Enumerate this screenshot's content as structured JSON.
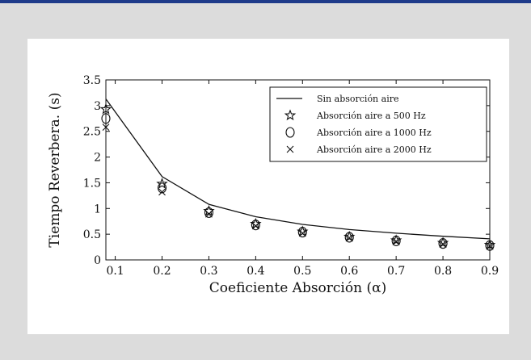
{
  "colors": {
    "accent_rule": "#1f3b8a",
    "background": "#dcdcdc",
    "panel": "#ffffff",
    "ink": "#111111"
  },
  "chart_data": {
    "type": "line",
    "title": "",
    "xlabel": "Coeficiente Absorción (α)",
    "ylabel": "Tiempo Reverbera. (s)",
    "xlim": [
      0.08,
      0.9
    ],
    "ylim": [
      0,
      3.5
    ],
    "xticks": [
      "0.1",
      "0.2",
      "0.3",
      "0.4",
      "0.5",
      "0.6",
      "0.7",
      "0.8",
      "0.9"
    ],
    "yticks": [
      "0",
      "0.5",
      "1",
      "1.5",
      "2",
      "2.5",
      "3",
      "3.5"
    ],
    "grid": false,
    "legend_position": "top-right",
    "x": [
      0.08,
      0.2,
      0.3,
      0.4,
      0.5,
      0.6,
      0.7,
      0.8,
      0.9
    ],
    "series": [
      {
        "name": "Sin absorción aire",
        "marker": "line",
        "values": [
          3.13,
          1.62,
          1.08,
          0.84,
          0.69,
          0.59,
          0.52,
          0.46,
          0.41
        ]
      },
      {
        "name": "Absorción aire a 500 Hz",
        "marker": "star",
        "values": [
          2.93,
          1.48,
          0.95,
          0.7,
          0.55,
          0.45,
          0.38,
          0.33,
          0.29
        ]
      },
      {
        "name": "Absorción aire a 1000 Hz",
        "marker": "circle",
        "values": [
          2.75,
          1.4,
          0.92,
          0.68,
          0.54,
          0.44,
          0.37,
          0.32,
          0.28
        ]
      },
      {
        "name": "Absorción aire a 2000 Hz",
        "marker": "x",
        "values": [
          2.58,
          1.32,
          0.89,
          0.66,
          0.52,
          0.43,
          0.36,
          0.31,
          0.27
        ]
      }
    ]
  }
}
